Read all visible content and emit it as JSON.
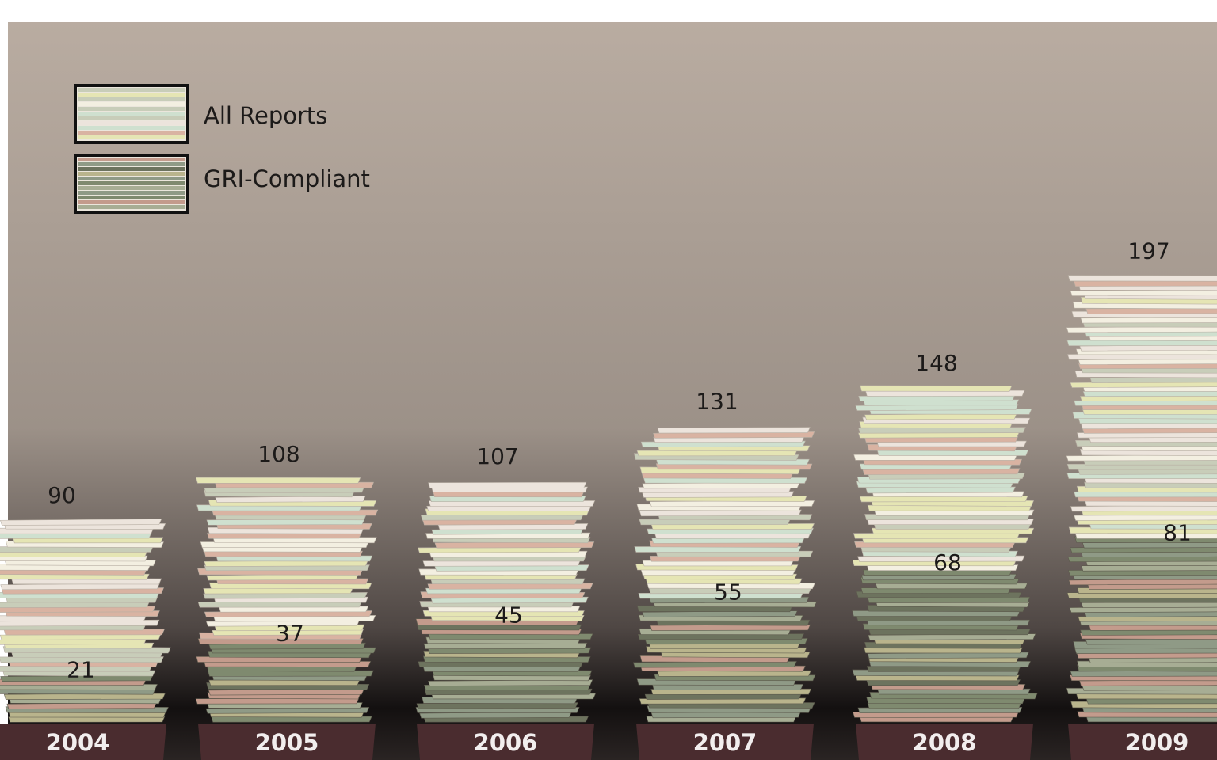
{
  "chart_data": {
    "type": "bar",
    "categories": [
      "2004",
      "2005",
      "2006",
      "2007",
      "2008",
      "2009"
    ],
    "series": [
      {
        "name": "All Reports",
        "values": [
          90,
          108,
          107,
          131,
          148,
          197
        ]
      },
      {
        "name": "GRI-Compliant",
        "values": [
          21,
          37,
          45,
          55,
          68,
          81
        ]
      }
    ],
    "title": "",
    "xlabel": "",
    "ylabel": "",
    "ylim": [
      0,
      200
    ],
    "grid": false,
    "legend_position": "top-left",
    "colors": {
      "all_reports_paper": [
        "#f3efe1",
        "#d9b3a2",
        "#e5e5b4",
        "#cfe0cf",
        "#ece4dc",
        "#c8cdb9"
      ],
      "gri_paper": [
        "#7f8a6f",
        "#b9b48c",
        "#8f9a86",
        "#c39b8c",
        "#a7ad94",
        "#6d735e"
      ],
      "background_top": "#b8aca1",
      "background_bottom": "#141111",
      "year_band": "#4a2c2f"
    }
  },
  "legend": {
    "items": [
      {
        "label": "All Reports",
        "icon": "paper-stack-light-swatch"
      },
      {
        "label": "GRI-Compliant",
        "icon": "paper-stack-dark-swatch"
      }
    ]
  }
}
